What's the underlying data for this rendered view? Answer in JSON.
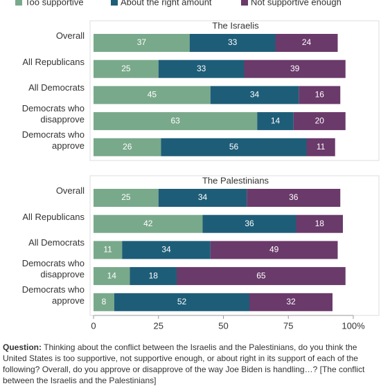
{
  "chart_data": [
    {
      "type": "bar",
      "orientation": "horizontal",
      "stacked": true,
      "title": "The Israelis",
      "categories": [
        "Overall",
        "All Republicans",
        "All Democrats",
        "Democrats who disapprove",
        "Democrats who approve"
      ],
      "series": [
        {
          "name": "Too supportive",
          "color": "#79a98b",
          "values": [
            37,
            25,
            45,
            63,
            26
          ]
        },
        {
          "name": "About the right amount",
          "color": "#1e5d78",
          "values": [
            33,
            33,
            34,
            14,
            56
          ]
        },
        {
          "name": "Not supportive enough",
          "color": "#6a3a6a",
          "values": [
            24,
            39,
            16,
            20,
            11
          ]
        }
      ],
      "xlim": [
        0,
        100
      ]
    },
    {
      "type": "bar",
      "orientation": "horizontal",
      "stacked": true,
      "title": "The Palestinians",
      "categories": [
        "Overall",
        "All Republicans",
        "All Democrats",
        "Democrats who disapprove",
        "Democrats who approve"
      ],
      "series": [
        {
          "name": "Too supportive",
          "color": "#79a98b",
          "values": [
            25,
            42,
            11,
            14,
            8
          ]
        },
        {
          "name": "About the right amount",
          "color": "#1e5d78",
          "values": [
            34,
            36,
            34,
            18,
            52
          ]
        },
        {
          "name": "Not supportive enough",
          "color": "#6a3a6a",
          "values": [
            36,
            18,
            49,
            65,
            32
          ]
        }
      ],
      "xlim": [
        0,
        100
      ],
      "xticks": [
        0,
        25,
        50,
        75,
        {
          "value": 100,
          "label": "100%"
        }
      ]
    }
  ],
  "footnote": {
    "label": "Question:",
    "text": "Thinking about the conflict between the Israelis and the Palestinians, do you think the United States is too supportive, not supportive enough, or about right in its support of each of the following? Overall, do you approve or disapprove of the way Joe Biden is handling…? [The conflict between the Israelis and the Palestinians]"
  }
}
